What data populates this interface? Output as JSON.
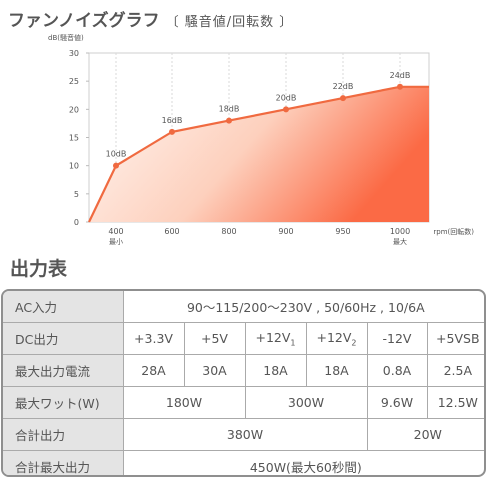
{
  "header": {
    "title": "ファンノイズグラフ",
    "subtitle": "〔 騒音値/回転数 〕"
  },
  "chart_data": {
    "type": "area",
    "ylabel": "dB(騒音値)",
    "xlabel": "rpm(回転数)",
    "ylim": [
      0,
      30
    ],
    "yticks": [
      0,
      5,
      10,
      15,
      20,
      25,
      30
    ],
    "categories": [
      "400",
      "600",
      "800",
      "900",
      "950",
      "1000"
    ],
    "category_sublabels": [
      "最小",
      "",
      "",
      "",
      "",
      "最大"
    ],
    "values": [
      10,
      16,
      18,
      20,
      22,
      24
    ],
    "data_labels": [
      "10dB",
      "16dB",
      "18dB",
      "20dB",
      "22dB",
      "24dB"
    ],
    "grid": "vertical dashed",
    "colors": {
      "line": "#f06a40",
      "fill_light": "#fff7f3",
      "fill_dark": "#fb6a45",
      "marker": "#f06a40"
    }
  },
  "output_section": {
    "title": "出力表"
  },
  "table": {
    "rows": [
      {
        "label": "AC入力",
        "cells": [
          "90〜115/200〜230V , 50/60Hz , 10/6A"
        ]
      },
      {
        "label": "DC出力",
        "cells": [
          "+3.3V",
          "+5V",
          "+12V",
          "1",
          "+12V",
          "2",
          "-12V",
          "+5VSB"
        ]
      },
      {
        "label": "最大出力電流",
        "cells": [
          "28A",
          "30A",
          "18A",
          "18A",
          "0.8A",
          "2.5A"
        ]
      },
      {
        "label": "最大ワット(W)",
        "cells": [
          "180W",
          "300W",
          "9.6W",
          "12.5W"
        ]
      },
      {
        "label": "合計出力",
        "cells": [
          "380W",
          "20W"
        ]
      },
      {
        "label": "合計最大出力",
        "cells": [
          "450W(最大60秒間)"
        ]
      }
    ]
  }
}
